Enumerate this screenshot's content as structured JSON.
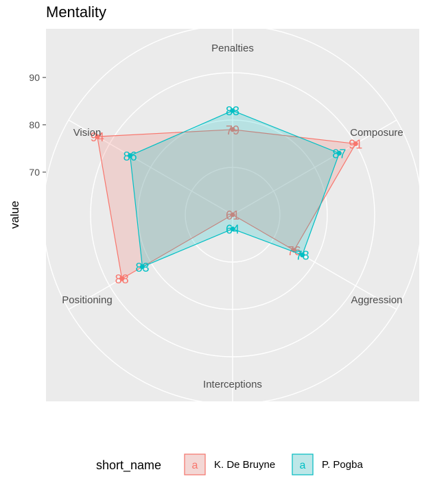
{
  "chart_data": {
    "type": "radar",
    "title": "Mentality",
    "ylabel": "value",
    "yticks": [
      "70",
      "80",
      "90"
    ],
    "ylim": [
      61,
      101
    ],
    "categories": [
      "Penalties",
      "Composure",
      "Aggression",
      "Interceptions",
      "Positioning",
      "Vision"
    ],
    "legend": {
      "title": "short_name",
      "position": "bottom",
      "key_glyph": "a"
    },
    "series": [
      {
        "name": "K. De Bruyne",
        "color": "#F8766D",
        "values": [
          79,
          91,
          76,
          61,
          88,
          94
        ]
      },
      {
        "name": "P. Pogba",
        "color": "#00BFC4",
        "values": [
          83,
          87,
          78,
          64,
          83,
          86
        ]
      }
    ]
  }
}
